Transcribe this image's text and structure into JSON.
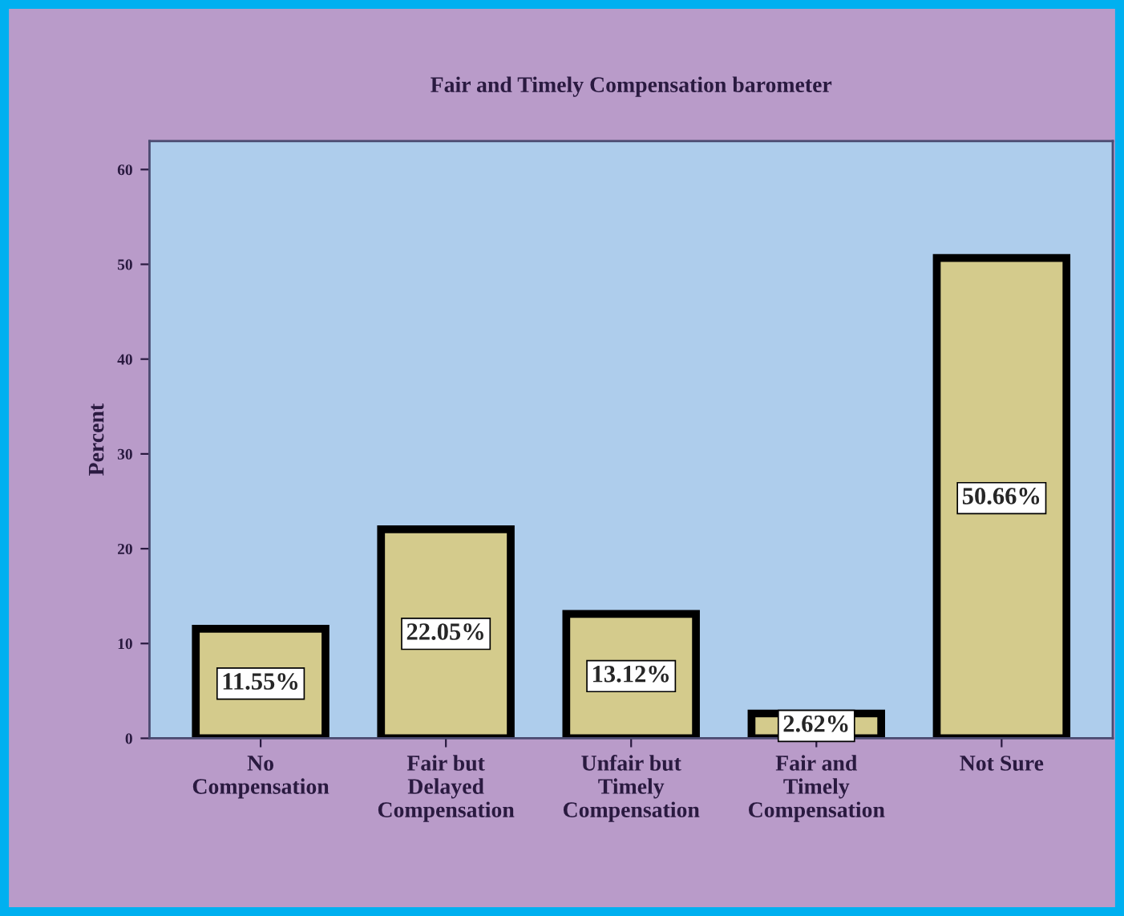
{
  "chart_data": {
    "type": "bar",
    "title": "Fair and Timely Compensation barometer",
    "ylabel": "Percent",
    "categories": [
      "No\nCompensation",
      "Fair but\nDelayed\nCompensation",
      "Unfair but\nTimely\nCompensation",
      "Fair and\nTimely\nCompensation",
      "Not Sure"
    ],
    "values": [
      11.55,
      22.05,
      13.12,
      2.62,
      50.66
    ],
    "value_labels": [
      "11.55%",
      "22.05%",
      "13.12%",
      "2.62%",
      "50.66%"
    ],
    "color": "#d4cb8c",
    "ylim": [
      0,
      63
    ],
    "yticks": [
      0,
      10,
      20,
      30,
      40,
      50,
      60
    ],
    "grid": false,
    "legend": false
  }
}
